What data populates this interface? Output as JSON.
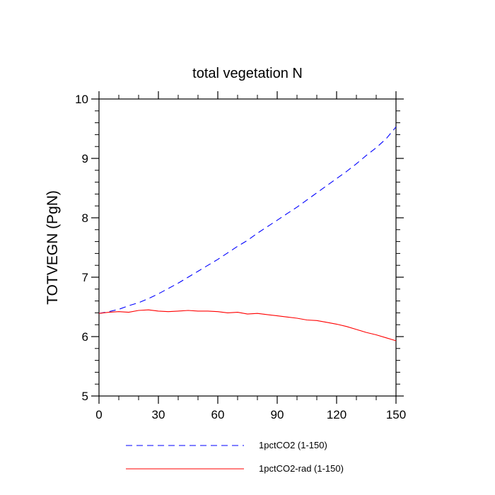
{
  "chart_data": {
    "type": "line",
    "title": "total vegetation N",
    "xlabel": "",
    "ylabel": "TOTVEGN  (PgN)",
    "xlim": [
      0,
      150
    ],
    "ylim": [
      5,
      10
    ],
    "xticks": [
      0,
      30,
      60,
      90,
      120,
      150
    ],
    "yticks": [
      5,
      6,
      7,
      8,
      9,
      10
    ],
    "grid": false,
    "legend_position": "bottom",
    "series": [
      {
        "name": "1pctCO2 (1-150)",
        "color": "#0000ff",
        "style": "dashed",
        "x": [
          0,
          5,
          10,
          15,
          20,
          25,
          30,
          35,
          40,
          45,
          50,
          55,
          60,
          65,
          70,
          75,
          80,
          85,
          90,
          95,
          100,
          105,
          110,
          115,
          120,
          125,
          130,
          135,
          140,
          145,
          150
        ],
        "y": [
          6.39,
          6.42,
          6.46,
          6.52,
          6.57,
          6.64,
          6.72,
          6.81,
          6.9,
          7.0,
          7.1,
          7.2,
          7.3,
          7.41,
          7.52,
          7.62,
          7.74,
          7.85,
          7.96,
          8.07,
          8.18,
          8.3,
          8.42,
          8.54,
          8.66,
          8.78,
          8.91,
          9.05,
          9.18,
          9.33,
          9.53
        ]
      },
      {
        "name": "1pctCO2-rad (1-150)",
        "color": "#ff0000",
        "style": "solid",
        "x": [
          0,
          5,
          10,
          15,
          20,
          25,
          30,
          35,
          40,
          45,
          50,
          55,
          60,
          65,
          70,
          75,
          80,
          85,
          90,
          95,
          100,
          105,
          110,
          115,
          120,
          125,
          130,
          135,
          140,
          145,
          150
        ],
        "y": [
          6.39,
          6.41,
          6.42,
          6.41,
          6.44,
          6.45,
          6.43,
          6.42,
          6.43,
          6.44,
          6.43,
          6.43,
          6.42,
          6.4,
          6.41,
          6.38,
          6.39,
          6.37,
          6.35,
          6.33,
          6.31,
          6.28,
          6.27,
          6.24,
          6.21,
          6.17,
          6.12,
          6.07,
          6.03,
          5.98,
          5.93
        ]
      }
    ]
  }
}
